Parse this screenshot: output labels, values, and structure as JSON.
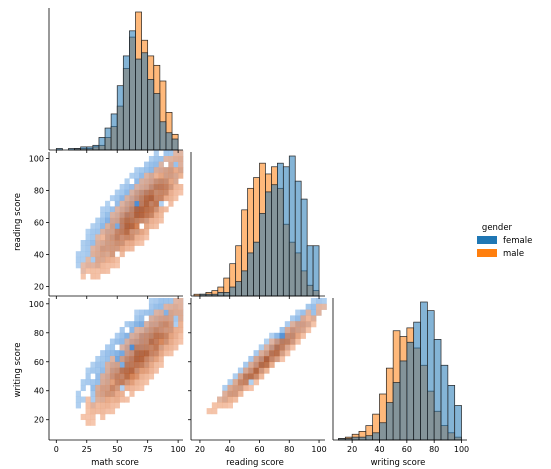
{
  "chart_data": {
    "type": "pairplot",
    "hue": "gender",
    "legend": {
      "title": "gender",
      "placement": "right",
      "entries": [
        {
          "label": "female",
          "color": "#1f77b4"
        },
        {
          "label": "male",
          "color": "#ff7f0e"
        }
      ]
    },
    "variables": [
      "math score",
      "reading score",
      "writing score"
    ],
    "xlabels": [
      "math score",
      "reading score",
      "writing score"
    ],
    "ylabels": [
      "",
      "reading score",
      "writing score"
    ],
    "axes": {
      "math score": {
        "range": [
          -6,
          104
        ],
        "ticks": [
          0,
          25,
          50,
          75,
          100
        ]
      },
      "reading score": {
        "range": [
          14,
          104
        ],
        "ticks": [
          20,
          40,
          60,
          80,
          100
        ]
      },
      "writing score": {
        "range": [
          6,
          104
        ],
        "ticks": [
          20,
          40,
          60,
          80,
          100
        ]
      }
    },
    "histograms": {
      "math score": {
        "bins": [
          0,
          5,
          10,
          15,
          20,
          25,
          30,
          35,
          40,
          45,
          50,
          55,
          60,
          65,
          70,
          75,
          80,
          85,
          90,
          95,
          100
        ],
        "female": [
          1,
          0,
          1,
          1,
          2,
          2,
          3,
          8,
          14,
          23,
          41,
          60,
          76,
          58,
          62,
          45,
          36,
          18,
          11,
          7
        ],
        "male": [
          0,
          0,
          0,
          1,
          1,
          1,
          2,
          3,
          8,
          15,
          28,
          52,
          72,
          88,
          70,
          60,
          54,
          44,
          24,
          10
        ]
      },
      "reading score": {
        "bins": [
          16,
          20,
          24,
          28,
          32,
          36,
          40,
          44,
          48,
          52,
          56,
          60,
          64,
          68,
          72,
          76,
          80,
          84,
          88,
          92,
          96,
          100
        ],
        "female": [
          0,
          1,
          1,
          1,
          2,
          2,
          5,
          8,
          14,
          24,
          30,
          46,
          58,
          62,
          74,
          72,
          78,
          64,
          54,
          28,
          28
        ],
        "male": [
          1,
          1,
          2,
          3,
          5,
          10,
          18,
          28,
          48,
          60,
          66,
          74,
          68,
          72,
          60,
          40,
          30,
          24,
          14,
          6,
          3
        ]
      },
      "writing score": {
        "bins": [
          10,
          15,
          20,
          25,
          30,
          35,
          40,
          45,
          50,
          55,
          60,
          65,
          70,
          75,
          80,
          85,
          90,
          95,
          100
        ],
        "female": [
          1,
          1,
          2,
          2,
          3,
          5,
          12,
          26,
          40,
          55,
          68,
          82,
          96,
          90,
          70,
          52,
          38,
          24
        ],
        "male": [
          1,
          2,
          4,
          6,
          10,
          18,
          32,
          50,
          76,
          72,
          78,
          64,
          52,
          34,
          20,
          10,
          5,
          2
        ]
      }
    }
  }
}
